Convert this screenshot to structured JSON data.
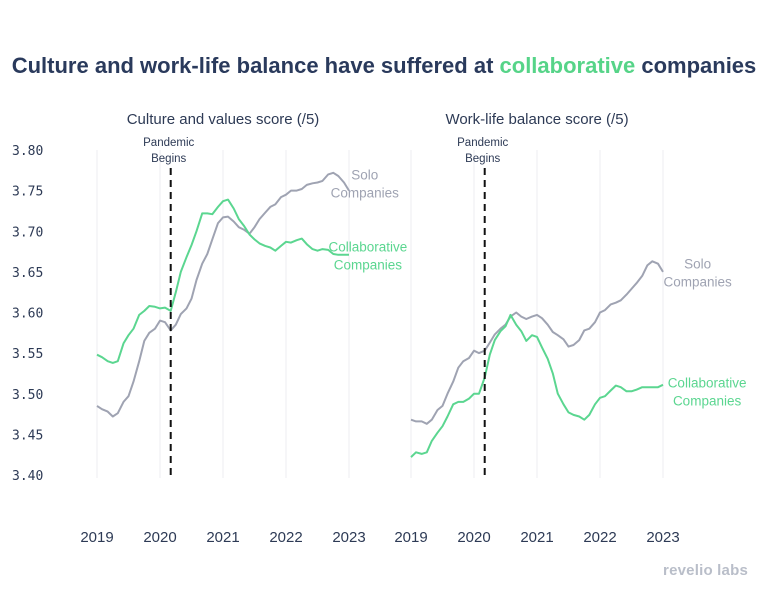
{
  "title": {
    "part1": "Culture and work-life balance have suffered at ",
    "highlight": "collaborative",
    "part2": " companies"
  },
  "footer": {
    "brand": "revelio labs"
  },
  "colors": {
    "solo": "#9fa3b2",
    "collab": "#5bd690",
    "title": "#2a3a5c",
    "highlight": "#56d488",
    "text": "#2d3a55",
    "grid": "#ececf0",
    "marker": "#111111"
  },
  "y_axis": {
    "ticks": [
      "3.80",
      "3.75",
      "3.70",
      "3.65",
      "3.60",
      "3.55",
      "3.50",
      "3.45",
      "3.40"
    ],
    "range": [
      3.4,
      3.8
    ]
  },
  "chart_data": [
    {
      "type": "line",
      "title": "Culture and values score (/5)",
      "x_ticks": [
        "2019",
        "2020",
        "2021",
        "2022",
        "2023"
      ],
      "x_range": [
        2019,
        2023
      ],
      "ylim": [
        3.4,
        3.8
      ],
      "annotation": {
        "x": 2020.17,
        "label_line1": "Pandemic",
        "label_line2": "Begins"
      },
      "series": [
        {
          "name": "Solo Companies",
          "label_line1": "Solo",
          "label_line2": "Companies",
          "color": "#9fa3b2",
          "label_at": [
            2023.25,
            3.764
          ],
          "x": [
            2019.0,
            2019.08,
            2019.17,
            2019.25,
            2019.33,
            2019.42,
            2019.5,
            2019.58,
            2019.67,
            2019.75,
            2019.83,
            2019.92,
            2020.0,
            2020.08,
            2020.17,
            2020.25,
            2020.33,
            2020.42,
            2020.5,
            2020.58,
            2020.67,
            2020.75,
            2020.83,
            2020.92,
            2021.0,
            2021.08,
            2021.17,
            2021.25,
            2021.33,
            2021.42,
            2021.5,
            2021.58,
            2021.67,
            2021.75,
            2021.83,
            2021.92,
            2022.0,
            2022.08,
            2022.17,
            2022.25,
            2022.33,
            2022.42,
            2022.5,
            2022.58,
            2022.67,
            2022.75,
            2022.83,
            2022.92,
            2023.0
          ],
          "values": [
            3.485,
            3.481,
            3.478,
            3.472,
            3.476,
            3.49,
            3.497,
            3.515,
            3.54,
            3.565,
            3.575,
            3.58,
            3.59,
            3.588,
            3.578,
            3.585,
            3.598,
            3.605,
            3.617,
            3.64,
            3.66,
            3.672,
            3.69,
            3.71,
            3.717,
            3.718,
            3.712,
            3.705,
            3.702,
            3.697,
            3.705,
            3.715,
            3.723,
            3.73,
            3.733,
            3.742,
            3.745,
            3.75,
            3.75,
            3.752,
            3.757,
            3.759,
            3.76,
            3.762,
            3.77,
            3.772,
            3.768,
            3.76,
            3.75
          ]
        },
        {
          "name": "Collaborative Companies",
          "label_line1": "Collaborative",
          "label_line2": "Companies",
          "color": "#5bd690",
          "label_at": [
            2023.3,
            3.675
          ],
          "x": [
            2019.0,
            2019.08,
            2019.17,
            2019.25,
            2019.33,
            2019.42,
            2019.5,
            2019.58,
            2019.67,
            2019.75,
            2019.83,
            2019.92,
            2020.0,
            2020.08,
            2020.17,
            2020.25,
            2020.33,
            2020.42,
            2020.5,
            2020.58,
            2020.67,
            2020.75,
            2020.83,
            2020.92,
            2021.0,
            2021.08,
            2021.17,
            2021.25,
            2021.33,
            2021.42,
            2021.5,
            2021.58,
            2021.67,
            2021.75,
            2021.83,
            2021.92,
            2022.0,
            2022.08,
            2022.17,
            2022.25,
            2022.33,
            2022.42,
            2022.5,
            2022.58,
            2022.67,
            2022.75,
            2022.83,
            2022.92,
            2023.0
          ],
          "values": [
            3.548,
            3.545,
            3.54,
            3.538,
            3.54,
            3.562,
            3.572,
            3.58,
            3.597,
            3.602,
            3.608,
            3.607,
            3.605,
            3.606,
            3.602,
            3.625,
            3.65,
            3.668,
            3.683,
            3.7,
            3.722,
            3.722,
            3.721,
            3.73,
            3.737,
            3.739,
            3.728,
            3.715,
            3.707,
            3.696,
            3.69,
            3.685,
            3.682,
            3.68,
            3.676,
            3.682,
            3.687,
            3.686,
            3.689,
            3.691,
            3.684,
            3.678,
            3.676,
            3.678,
            3.677,
            3.672,
            3.671,
            3.671,
            3.671
          ]
        }
      ]
    },
    {
      "type": "line",
      "title": "Work-life balance score (/5)",
      "x_ticks": [
        "2019",
        "2020",
        "2021",
        "2022",
        "2023"
      ],
      "x_range": [
        2019,
        2023
      ],
      "ylim": [
        3.4,
        3.8
      ],
      "annotation": {
        "x": 2020.17,
        "label_line1": "Pandemic",
        "label_line2": "Begins"
      },
      "series": [
        {
          "name": "Solo Companies",
          "label_line1": "Solo",
          "label_line2": "Companies",
          "color": "#9fa3b2",
          "label_at": [
            2023.55,
            3.654
          ],
          "x": [
            2019.0,
            2019.08,
            2019.17,
            2019.25,
            2019.33,
            2019.42,
            2019.5,
            2019.58,
            2019.67,
            2019.75,
            2019.83,
            2019.92,
            2020.0,
            2020.08,
            2020.17,
            2020.25,
            2020.33,
            2020.42,
            2020.5,
            2020.58,
            2020.67,
            2020.75,
            2020.83,
            2020.92,
            2021.0,
            2021.08,
            2021.17,
            2021.25,
            2021.33,
            2021.42,
            2021.5,
            2021.58,
            2021.67,
            2021.75,
            2021.83,
            2021.92,
            2022.0,
            2022.08,
            2022.17,
            2022.25,
            2022.33,
            2022.42,
            2022.5,
            2022.58,
            2022.67,
            2022.75,
            2022.83,
            2022.92,
            2023.0
          ],
          "values": [
            3.468,
            3.466,
            3.466,
            3.463,
            3.468,
            3.48,
            3.485,
            3.5,
            3.515,
            3.532,
            3.54,
            3.544,
            3.553,
            3.55,
            3.553,
            3.563,
            3.573,
            3.58,
            3.585,
            3.595,
            3.6,
            3.595,
            3.592,
            3.595,
            3.597,
            3.593,
            3.585,
            3.576,
            3.572,
            3.567,
            3.558,
            3.56,
            3.566,
            3.578,
            3.58,
            3.588,
            3.6,
            3.603,
            3.61,
            3.612,
            3.615,
            3.622,
            3.629,
            3.636,
            3.645,
            3.658,
            3.663,
            3.66,
            3.65
          ]
        },
        {
          "name": "Collaborative Companies",
          "label_line1": "Collaborative",
          "label_line2": "Companies",
          "color": "#5bd690",
          "label_at": [
            2023.7,
            3.508
          ],
          "x": [
            2019.0,
            2019.08,
            2019.17,
            2019.25,
            2019.33,
            2019.42,
            2019.5,
            2019.58,
            2019.67,
            2019.75,
            2019.83,
            2019.92,
            2020.0,
            2020.08,
            2020.17,
            2020.25,
            2020.33,
            2020.42,
            2020.5,
            2020.58,
            2020.67,
            2020.75,
            2020.83,
            2020.92,
            2021.0,
            2021.08,
            2021.17,
            2021.25,
            2021.33,
            2021.42,
            2021.5,
            2021.58,
            2021.67,
            2021.75,
            2021.83,
            2021.92,
            2022.0,
            2022.08,
            2022.17,
            2022.25,
            2022.33,
            2022.42,
            2022.5,
            2022.58,
            2022.67,
            2022.75,
            2022.83,
            2022.92,
            2023.0
          ],
          "values": [
            3.422,
            3.428,
            3.426,
            3.428,
            3.442,
            3.452,
            3.46,
            3.472,
            3.487,
            3.49,
            3.49,
            3.494,
            3.5,
            3.5,
            3.52,
            3.548,
            3.566,
            3.577,
            3.583,
            3.597,
            3.585,
            3.577,
            3.565,
            3.572,
            3.57,
            3.557,
            3.543,
            3.525,
            3.5,
            3.487,
            3.477,
            3.474,
            3.472,
            3.468,
            3.474,
            3.487,
            3.495,
            3.497,
            3.504,
            3.51,
            3.508,
            3.503,
            3.503,
            3.505,
            3.508,
            3.508,
            3.508,
            3.508,
            3.511
          ]
        }
      ]
    }
  ]
}
